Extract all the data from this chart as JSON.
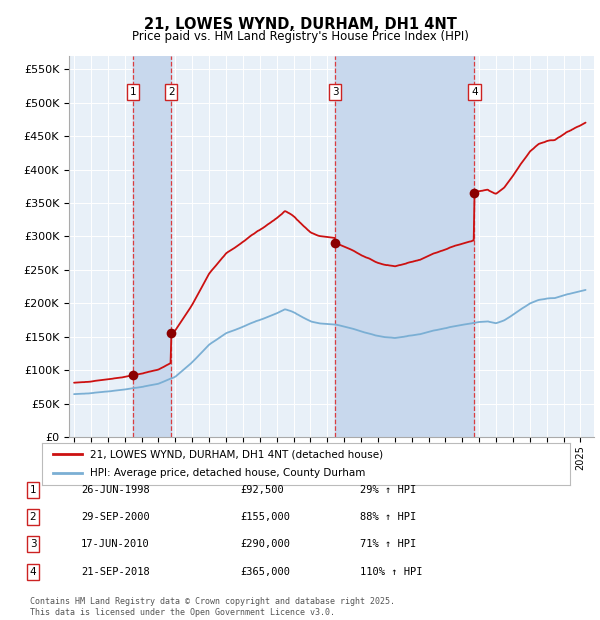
{
  "title": "21, LOWES WYND, DURHAM, DH1 4NT",
  "subtitle": "Price paid vs. HM Land Registry's House Price Index (HPI)",
  "ylim": [
    0,
    570000
  ],
  "yticks": [
    0,
    50000,
    100000,
    150000,
    200000,
    250000,
    300000,
    350000,
    400000,
    450000,
    500000,
    550000
  ],
  "xlim_start": 1994.7,
  "xlim_end": 2025.8,
  "background_color": "#ffffff",
  "plot_bg_color": "#e8f0f8",
  "grid_color": "#ffffff",
  "hpi_color": "#7bafd4",
  "price_color": "#cc1111",
  "shade_color": "#c8d8ed",
  "purchases": [
    {
      "label": "1",
      "date_str": "26-JUN-1998",
      "year": 1998.49,
      "price": 92500,
      "hpi_pct": "29%"
    },
    {
      "label": "2",
      "date_str": "29-SEP-2000",
      "year": 2000.75,
      "price": 155000,
      "hpi_pct": "88%"
    },
    {
      "label": "3",
      "date_str": "17-JUN-2010",
      "year": 2010.46,
      "price": 290000,
      "hpi_pct": "71%"
    },
    {
      "label": "4",
      "date_str": "21-SEP-2018",
      "year": 2018.72,
      "price": 365000,
      "hpi_pct": "110%"
    }
  ],
  "legend_entries": [
    "21, LOWES WYND, DURHAM, DH1 4NT (detached house)",
    "HPI: Average price, detached house, County Durham"
  ],
  "footer": "Contains HM Land Registry data © Crown copyright and database right 2025.\nThis data is licensed under the Open Government Licence v3.0."
}
